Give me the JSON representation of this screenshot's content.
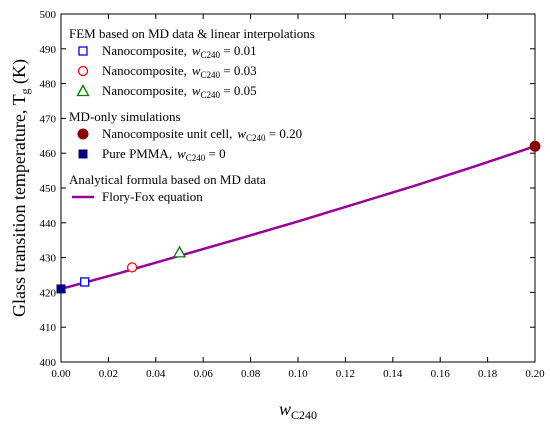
{
  "chart_data": {
    "type": "scatter",
    "xlabel": {
      "main": "w",
      "sub": "C240"
    },
    "ylabel": {
      "main": "Glass transition temperature, T",
      "sub": "g",
      "after": " (K)"
    },
    "xlim": [
      0,
      0.2
    ],
    "ylim": [
      400,
      500
    ],
    "x_ticks": [
      0,
      0.02,
      0.04,
      0.06,
      0.08,
      0.1,
      0.12,
      0.14,
      0.16,
      0.18,
      0.2
    ],
    "x_tick_labels": [
      "0.00",
      "0.02",
      "0.04",
      "0.06",
      "0.08",
      "0.10",
      "0.12",
      "0.14",
      "0.16",
      "0.18",
      "0.20"
    ],
    "y_ticks": [
      400,
      410,
      420,
      430,
      440,
      450,
      460,
      470,
      480,
      490,
      500
    ],
    "y_tick_labels": [
      "400",
      "410",
      "420",
      "430",
      "440",
      "450",
      "460",
      "470",
      "480",
      "490",
      "500"
    ],
    "legend_groups": [
      {
        "heading": "FEM based on MD data & linear interpolations",
        "items": [
          {
            "label": "Nanocomposite,",
            "w": "w",
            "sub": "C240",
            "eq": " = 0.01",
            "marker": "open-square",
            "color": "#0000ff"
          },
          {
            "label": "Nanocomposite,",
            "w": "w",
            "sub": "C240",
            "eq": " = 0.03",
            "marker": "open-circle",
            "color": "#ff0000"
          },
          {
            "label": "Nanocomposite,",
            "w": "w",
            "sub": "C240",
            "eq": " = 0.05",
            "marker": "open-triangle",
            "color": "#008000"
          }
        ]
      },
      {
        "heading": "MD-only simulations",
        "items": [
          {
            "label": "Nanocomposite unit cell,",
            "w": "w",
            "sub": "C240",
            "eq": " = 0.20",
            "marker": "filled-circle",
            "color": "#8b0000"
          },
          {
            "label": "Pure PMMA,",
            "w": "w",
            "sub": "C240",
            "eq": " = 0",
            "marker": "filled-square",
            "color": "#000080"
          }
        ]
      },
      {
        "heading": "Analytical formula based on MD data",
        "items": [
          {
            "label": "Flory-Fox equation",
            "marker": "line",
            "color": "#990099"
          }
        ]
      }
    ],
    "series": [
      {
        "name": "FEM w=0.01",
        "marker": "open-square",
        "color": "#0000ff",
        "points": [
          [
            0.01,
            423.0
          ]
        ]
      },
      {
        "name": "FEM w=0.03",
        "marker": "open-circle",
        "color": "#ff0000",
        "points": [
          [
            0.03,
            427.2
          ]
        ]
      },
      {
        "name": "FEM w=0.05",
        "marker": "open-triangle",
        "color": "#008000",
        "points": [
          [
            0.05,
            431.5
          ]
        ]
      },
      {
        "name": "MD unit cell w=0.20",
        "marker": "filled-circle",
        "color": "#8b0000",
        "points": [
          [
            0.2,
            462.0
          ]
        ]
      },
      {
        "name": "Pure PMMA",
        "marker": "filled-square",
        "color": "#000080",
        "points": [
          [
            0.0,
            421.0
          ]
        ]
      },
      {
        "name": "Flory-Fox equation",
        "marker": "line",
        "color": "#990099",
        "x": [
          0,
          0.025,
          0.05,
          0.075,
          0.1,
          0.125,
          0.15,
          0.175,
          0.2
        ],
        "y": [
          421.0,
          425.6,
          430.5,
          435.4,
          440.4,
          445.6,
          450.8,
          456.3,
          462.0
        ]
      }
    ]
  }
}
